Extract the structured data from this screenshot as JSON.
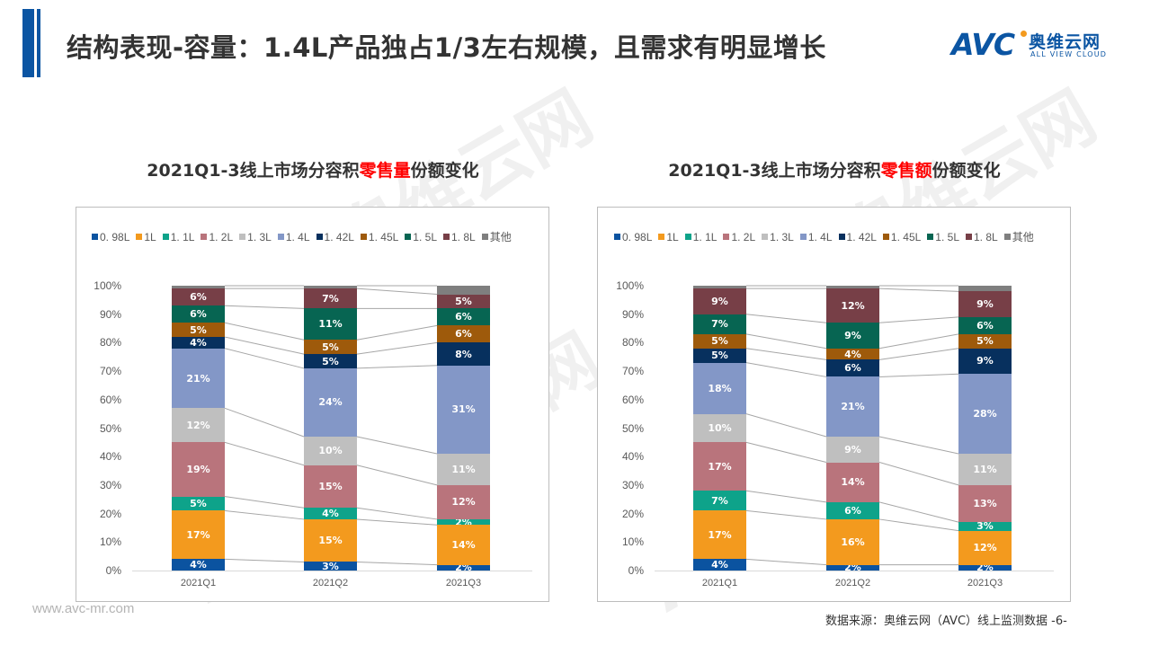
{
  "header": {
    "title": "结构表现-容量：1.4L产品独占1/3左右规模，且需求有明显增长",
    "logo": {
      "mark": "AVC",
      "cn": "奥维云网",
      "en": "ALL VIEW CLOUD"
    },
    "accent_color": "#0b55a3"
  },
  "footer": {
    "url": "www.avc-mr.com",
    "source": "数据来源：奥维云网（AVC）线上监测数据 -6-"
  },
  "colors": {
    "0.98L": "#0b53a0",
    "1L": "#f39a1e",
    "1.1L": "#0ea38a",
    "1.2L": "#b9747c",
    "1.3L": "#bfbfbf",
    "1.4L": "#8397c7",
    "1.42L": "#07305e",
    "1.45L": "#9e5a0b",
    "1.5L": "#076552",
    "1.8L": "#773f47",
    "其他": "#7f7f7f"
  },
  "chart_data": [
    {
      "type": "bar",
      "stacked": "percent",
      "title_parts": [
        "2021Q1-3线上市场分容积",
        "零售量",
        "份额变化"
      ],
      "title": "2021Q1-3线上市场分容积零售量份额变化",
      "categories": [
        "2021Q1",
        "2021Q2",
        "2021Q3"
      ],
      "legend": [
        "0.98L",
        "1L",
        "1.1L",
        "1.2L",
        "1.3L",
        "1.4L",
        "1.42L",
        "1.45L",
        "1.5L",
        "1.8L",
        "其他"
      ],
      "legend_display": [
        "0. 98L",
        "1L",
        "1. 1L",
        "1. 2L",
        "1. 3L",
        "1. 4L",
        "1. 42L",
        "1. 45L",
        "1. 5L",
        "1. 8L",
        "其他"
      ],
      "legend_position": "top",
      "yticks": [
        "0%",
        "10%",
        "20%",
        "30%",
        "40%",
        "50%",
        "60%",
        "70%",
        "80%",
        "90%",
        "100%"
      ],
      "ylim": [
        0,
        100
      ],
      "series": [
        {
          "name": "0.98L",
          "values": [
            4,
            3,
            2
          ]
        },
        {
          "name": "1L",
          "values": [
            17,
            15,
            14
          ]
        },
        {
          "name": "1.1L",
          "values": [
            5,
            4,
            2
          ]
        },
        {
          "name": "1.2L",
          "values": [
            19,
            15,
            12
          ]
        },
        {
          "name": "1.3L",
          "values": [
            12,
            10,
            11
          ]
        },
        {
          "name": "1.4L",
          "values": [
            21,
            24,
            31
          ]
        },
        {
          "name": "1.42L",
          "values": [
            4,
            5,
            8
          ]
        },
        {
          "name": "1.45L",
          "values": [
            5,
            5,
            6
          ]
        },
        {
          "name": "1.5L",
          "values": [
            6,
            11,
            6
          ]
        },
        {
          "name": "1.8L",
          "values": [
            6,
            7,
            5
          ]
        },
        {
          "name": "其他",
          "values": [
            1,
            1,
            3
          ]
        }
      ]
    },
    {
      "type": "bar",
      "stacked": "percent",
      "title_parts": [
        "2021Q1-3线上市场分容积",
        "零售额",
        "份额变化"
      ],
      "title": "2021Q1-3线上市场分容积零售额份额变化",
      "categories": [
        "2021Q1",
        "2021Q2",
        "2021Q3"
      ],
      "legend": [
        "0.98L",
        "1L",
        "1.1L",
        "1.2L",
        "1.3L",
        "1.4L",
        "1.42L",
        "1.45L",
        "1.5L",
        "1.8L",
        "其他"
      ],
      "legend_display": [
        "0. 98L",
        "1L",
        "1. 1L",
        "1. 2L",
        "1. 3L",
        "1. 4L",
        "1. 42L",
        "1. 45L",
        "1. 5L",
        "1. 8L",
        "其他"
      ],
      "legend_position": "top",
      "yticks": [
        "0%",
        "10%",
        "20%",
        "30%",
        "40%",
        "50%",
        "60%",
        "70%",
        "80%",
        "90%",
        "100%"
      ],
      "ylim": [
        0,
        100
      ],
      "series": [
        {
          "name": "0.98L",
          "values": [
            4,
            2,
            2
          ]
        },
        {
          "name": "1L",
          "values": [
            17,
            16,
            12
          ]
        },
        {
          "name": "1.1L",
          "values": [
            7,
            6,
            3
          ]
        },
        {
          "name": "1.2L",
          "values": [
            17,
            14,
            13
          ]
        },
        {
          "name": "1.3L",
          "values": [
            10,
            9,
            11
          ]
        },
        {
          "name": "1.4L",
          "values": [
            18,
            21,
            28
          ]
        },
        {
          "name": "1.42L",
          "values": [
            5,
            6,
            9
          ]
        },
        {
          "name": "1.45L",
          "values": [
            5,
            4,
            5
          ]
        },
        {
          "name": "1.5L",
          "values": [
            7,
            9,
            6
          ]
        },
        {
          "name": "1.8L",
          "values": [
            9,
            12,
            9
          ]
        },
        {
          "name": "其他",
          "values": [
            1,
            1,
            2
          ]
        }
      ]
    }
  ]
}
